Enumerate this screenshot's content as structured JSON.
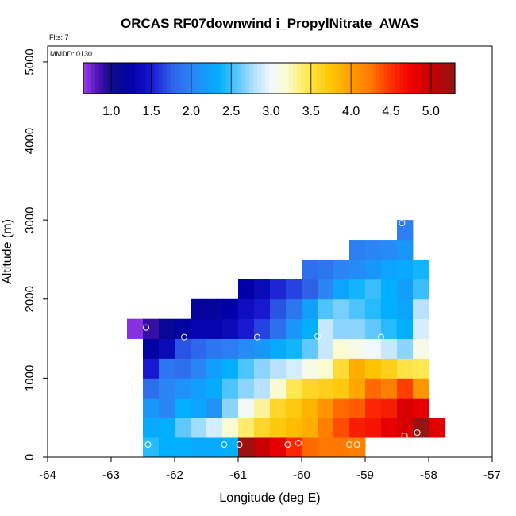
{
  "chart_data": {
    "type": "heatmap",
    "title": "ORCAS RF07downwind i_PropylNitrate_AWAS",
    "flights_label": "Flts: 7",
    "date_label": "MMDD: 0130",
    "xlabel": "Longitude (deg E)",
    "ylabel": "Altitude (m)",
    "xlim": [
      -64,
      -57
    ],
    "ylim": [
      0,
      5200
    ],
    "x_ticks": [
      -64,
      -63,
      -62,
      -61,
      -60,
      -59,
      -58,
      -57
    ],
    "y_ticks": [
      0,
      1000,
      2000,
      3000,
      4000,
      5000
    ],
    "cell_dx": 0.25,
    "cell_dy": 250,
    "colorbar": {
      "range": [
        0.65,
        5.3
      ],
      "tick_values": [
        1.0,
        1.5,
        2.0,
        2.5,
        3.0,
        3.5,
        4.0,
        4.5,
        5.0
      ],
      "tick_labels": [
        "1.0",
        "1.5",
        "2.0",
        "2.5",
        "3.0",
        "3.5",
        "4.0",
        "4.5",
        "5.0"
      ],
      "stops": [
        [
          0.65,
          "#9a3cf0"
        ],
        [
          0.85,
          "#4a10b0"
        ],
        [
          1.0,
          "#0c0c8c"
        ],
        [
          1.25,
          "#0000a8"
        ],
        [
          1.5,
          "#1818d0"
        ],
        [
          1.75,
          "#2e60e8"
        ],
        [
          2.0,
          "#2b85f5"
        ],
        [
          2.35,
          "#00b0ff"
        ],
        [
          2.6,
          "#60c8ff"
        ],
        [
          2.8,
          "#b8e2ff"
        ],
        [
          3.0,
          "#f2f8ff"
        ],
        [
          3.2,
          "#fbfbd0"
        ],
        [
          3.45,
          "#ffe850"
        ],
        [
          3.75,
          "#ffc400"
        ],
        [
          4.0,
          "#ff9e00"
        ],
        [
          4.25,
          "#ff7800"
        ],
        [
          4.5,
          "#ff3000"
        ],
        [
          4.75,
          "#f00000"
        ],
        [
          5.0,
          "#c80000"
        ],
        [
          5.3,
          "#941414"
        ]
      ]
    },
    "cells": [
      {
        "x": -62.5,
        "y": 0,
        "v": 2.45
      },
      {
        "x": -62.25,
        "y": 0,
        "v": 2.35
      },
      {
        "x": -62.0,
        "y": 0,
        "v": 2.35
      },
      {
        "x": -61.75,
        "y": 0,
        "v": 2.3
      },
      {
        "x": -61.5,
        "y": 0,
        "v": 2.3
      },
      {
        "x": -61.25,
        "y": 0,
        "v": 2.35
      },
      {
        "x": -61.0,
        "y": 0,
        "v": 5.25
      },
      {
        "x": -60.75,
        "y": 0,
        "v": 5.0
      },
      {
        "x": -60.5,
        "y": 0,
        "v": 4.8
      },
      {
        "x": -60.25,
        "y": 0,
        "v": 4.55
      },
      {
        "x": -60.0,
        "y": 0,
        "v": 4.3
      },
      {
        "x": -59.75,
        "y": 0,
        "v": 4.25
      },
      {
        "x": -59.5,
        "y": 0,
        "v": 4.25
      },
      {
        "x": -59.25,
        "y": 0,
        "v": 4.2
      },
      {
        "x": -62.5,
        "y": 250,
        "v": 2.3
      },
      {
        "x": -62.25,
        "y": 250,
        "v": 2.35
      },
      {
        "x": -62.0,
        "y": 250,
        "v": 2.6
      },
      {
        "x": -61.75,
        "y": 250,
        "v": 2.75
      },
      {
        "x": -61.5,
        "y": 250,
        "v": 2.9
      },
      {
        "x": -61.25,
        "y": 250,
        "v": 3.2
      },
      {
        "x": -61.0,
        "y": 250,
        "v": 3.4
      },
      {
        "x": -60.75,
        "y": 250,
        "v": 3.6
      },
      {
        "x": -60.5,
        "y": 250,
        "v": 3.7
      },
      {
        "x": -60.25,
        "y": 250,
        "v": 3.8
      },
      {
        "x": -60.0,
        "y": 250,
        "v": 3.9
      },
      {
        "x": -59.75,
        "y": 250,
        "v": 4.2
      },
      {
        "x": -59.5,
        "y": 250,
        "v": 4.4
      },
      {
        "x": -59.25,
        "y": 250,
        "v": 4.6
      },
      {
        "x": -59.0,
        "y": 250,
        "v": 4.65
      },
      {
        "x": -58.75,
        "y": 250,
        "v": 4.8
      },
      {
        "x": -58.5,
        "y": 250,
        "v": 4.9
      },
      {
        "x": -58.25,
        "y": 250,
        "v": 5.3
      },
      {
        "x": -58.0,
        "y": 250,
        "v": 4.85
      },
      {
        "x": -62.5,
        "y": 500,
        "v": 2.15
      },
      {
        "x": -62.25,
        "y": 500,
        "v": 2.0
      },
      {
        "x": -62.0,
        "y": 500,
        "v": 2.35
      },
      {
        "x": -61.75,
        "y": 500,
        "v": 2.25
      },
      {
        "x": -61.5,
        "y": 500,
        "v": 2.1
      },
      {
        "x": -61.25,
        "y": 500,
        "v": 2.7
      },
      {
        "x": -61.0,
        "y": 500,
        "v": 3.05
      },
      {
        "x": -60.75,
        "y": 500,
        "v": 3.3
      },
      {
        "x": -60.5,
        "y": 500,
        "v": 3.6
      },
      {
        "x": -60.25,
        "y": 500,
        "v": 3.7
      },
      {
        "x": -60.0,
        "y": 500,
        "v": 3.85
      },
      {
        "x": -59.75,
        "y": 500,
        "v": 4.05
      },
      {
        "x": -59.5,
        "y": 500,
        "v": 4.3
      },
      {
        "x": -59.25,
        "y": 500,
        "v": 4.35
      },
      {
        "x": -59.0,
        "y": 500,
        "v": 4.55
      },
      {
        "x": -58.75,
        "y": 500,
        "v": 4.6
      },
      {
        "x": -58.5,
        "y": 500,
        "v": 4.9
      },
      {
        "x": -58.25,
        "y": 500,
        "v": 4.8
      },
      {
        "x": -62.5,
        "y": 750,
        "v": 1.85
      },
      {
        "x": -62.25,
        "y": 750,
        "v": 2.0
      },
      {
        "x": -62.0,
        "y": 750,
        "v": 2.1
      },
      {
        "x": -61.75,
        "y": 750,
        "v": 2.2
      },
      {
        "x": -61.5,
        "y": 750,
        "v": 2.3
      },
      {
        "x": -61.25,
        "y": 750,
        "v": 2.55
      },
      {
        "x": -61.0,
        "y": 750,
        "v": 2.7
      },
      {
        "x": -60.75,
        "y": 750,
        "v": 2.8
      },
      {
        "x": -60.5,
        "y": 750,
        "v": 3.2
      },
      {
        "x": -60.25,
        "y": 750,
        "v": 3.45
      },
      {
        "x": -60.0,
        "y": 750,
        "v": 3.6
      },
      {
        "x": -59.75,
        "y": 750,
        "v": 3.65
      },
      {
        "x": -59.5,
        "y": 750,
        "v": 3.7
      },
      {
        "x": -59.25,
        "y": 750,
        "v": 3.95
      },
      {
        "x": -59.0,
        "y": 750,
        "v": 4.3
      },
      {
        "x": -58.75,
        "y": 750,
        "v": 4.2
      },
      {
        "x": -58.5,
        "y": 750,
        "v": 4.45
      },
      {
        "x": -58.25,
        "y": 750,
        "v": 4.05
      },
      {
        "x": -62.5,
        "y": 1000,
        "v": 1.5
      },
      {
        "x": -62.25,
        "y": 1000,
        "v": 1.9
      },
      {
        "x": -62.0,
        "y": 1000,
        "v": 1.85
      },
      {
        "x": -61.75,
        "y": 1000,
        "v": 2.0
      },
      {
        "x": -61.5,
        "y": 1000,
        "v": 2.2
      },
      {
        "x": -61.25,
        "y": 1000,
        "v": 2.35
      },
      {
        "x": -61.0,
        "y": 1000,
        "v": 2.55
      },
      {
        "x": -60.75,
        "y": 1000,
        "v": 2.7
      },
      {
        "x": -60.5,
        "y": 1000,
        "v": 2.8
      },
      {
        "x": -60.25,
        "y": 1000,
        "v": 2.9
      },
      {
        "x": -60.0,
        "y": 1000,
        "v": 3.1
      },
      {
        "x": -59.75,
        "y": 1000,
        "v": 3.2
      },
      {
        "x": -59.5,
        "y": 1000,
        "v": 3.55
      },
      {
        "x": -59.25,
        "y": 1000,
        "v": 3.9
      },
      {
        "x": -59.0,
        "y": 1000,
        "v": 3.75
      },
      {
        "x": -58.75,
        "y": 1000,
        "v": 3.65
      },
      {
        "x": -58.5,
        "y": 1000,
        "v": 3.5
      },
      {
        "x": -58.25,
        "y": 1000,
        "v": 3.45
      },
      {
        "x": -62.5,
        "y": 1250,
        "v": 1.2
      },
      {
        "x": -62.25,
        "y": 1250,
        "v": 1.35
      },
      {
        "x": -62.0,
        "y": 1250,
        "v": 1.7
      },
      {
        "x": -61.75,
        "y": 1250,
        "v": 1.8
      },
      {
        "x": -61.5,
        "y": 1250,
        "v": 1.9
      },
      {
        "x": -61.25,
        "y": 1250,
        "v": 1.95
      },
      {
        "x": -61.0,
        "y": 1250,
        "v": 2.05
      },
      {
        "x": -60.75,
        "y": 1250,
        "v": 2.15
      },
      {
        "x": -60.5,
        "y": 1250,
        "v": 2.3
      },
      {
        "x": -60.25,
        "y": 1250,
        "v": 2.4
      },
      {
        "x": -60.0,
        "y": 1250,
        "v": 2.6
      },
      {
        "x": -59.75,
        "y": 1250,
        "v": 2.85
      },
      {
        "x": -59.5,
        "y": 1250,
        "v": 3.2
      },
      {
        "x": -59.25,
        "y": 1250,
        "v": 3.1
      },
      {
        "x": -59.0,
        "y": 1250,
        "v": 3.0
      },
      {
        "x": -58.75,
        "y": 1250,
        "v": 2.85
      },
      {
        "x": -58.5,
        "y": 1250,
        "v": 2.7
      },
      {
        "x": -58.25,
        "y": 1250,
        "v": 3.1
      },
      {
        "x": -62.75,
        "y": 1500,
        "v": 0.7
      },
      {
        "x": -62.5,
        "y": 1500,
        "v": 0.9
      },
      {
        "x": -62.25,
        "y": 1500,
        "v": 1.1
      },
      {
        "x": -62.0,
        "y": 1500,
        "v": 1.2
      },
      {
        "x": -61.75,
        "y": 1500,
        "v": 1.3
      },
      {
        "x": -61.5,
        "y": 1500,
        "v": 1.3
      },
      {
        "x": -61.25,
        "y": 1500,
        "v": 1.35
      },
      {
        "x": -61.0,
        "y": 1500,
        "v": 1.5
      },
      {
        "x": -60.75,
        "y": 1500,
        "v": 1.65
      },
      {
        "x": -60.5,
        "y": 1500,
        "v": 1.85
      },
      {
        "x": -60.25,
        "y": 1500,
        "v": 2.15
      },
      {
        "x": -60.0,
        "y": 1500,
        "v": 2.35
      },
      {
        "x": -59.75,
        "y": 1500,
        "v": 2.85
      },
      {
        "x": -59.5,
        "y": 1500,
        "v": 2.7
      },
      {
        "x": -59.25,
        "y": 1500,
        "v": 2.7
      },
      {
        "x": -59.0,
        "y": 1500,
        "v": 2.6
      },
      {
        "x": -58.75,
        "y": 1500,
        "v": 2.45
      },
      {
        "x": -58.5,
        "y": 1500,
        "v": 2.35
      },
      {
        "x": -58.25,
        "y": 1500,
        "v": 2.9
      },
      {
        "x": -61.75,
        "y": 1750,
        "v": 1.15
      },
      {
        "x": -61.5,
        "y": 1750,
        "v": 1.15
      },
      {
        "x": -61.25,
        "y": 1750,
        "v": 1.25
      },
      {
        "x": -61.0,
        "y": 1750,
        "v": 1.4
      },
      {
        "x": -60.75,
        "y": 1750,
        "v": 1.5
      },
      {
        "x": -60.5,
        "y": 1750,
        "v": 1.7
      },
      {
        "x": -60.25,
        "y": 1750,
        "v": 1.9
      },
      {
        "x": -60.0,
        "y": 1750,
        "v": 2.2
      },
      {
        "x": -59.75,
        "y": 1750,
        "v": 2.55
      },
      {
        "x": -59.5,
        "y": 1750,
        "v": 2.65
      },
      {
        "x": -59.25,
        "y": 1750,
        "v": 2.55
      },
      {
        "x": -59.0,
        "y": 1750,
        "v": 2.45
      },
      {
        "x": -58.75,
        "y": 1750,
        "v": 2.35
      },
      {
        "x": -58.5,
        "y": 1750,
        "v": 2.25
      },
      {
        "x": -58.25,
        "y": 1750,
        "v": 2.8
      },
      {
        "x": -61.0,
        "y": 2000,
        "v": 1.25
      },
      {
        "x": -60.75,
        "y": 2000,
        "v": 1.35
      },
      {
        "x": -60.5,
        "y": 2000,
        "v": 1.55
      },
      {
        "x": -60.25,
        "y": 2000,
        "v": 1.65
      },
      {
        "x": -60.0,
        "y": 2000,
        "v": 1.75
      },
      {
        "x": -59.75,
        "y": 2000,
        "v": 2.0
      },
      {
        "x": -59.5,
        "y": 2000,
        "v": 2.25
      },
      {
        "x": -59.25,
        "y": 2000,
        "v": 2.4
      },
      {
        "x": -59.0,
        "y": 2000,
        "v": 2.5
      },
      {
        "x": -58.75,
        "y": 2000,
        "v": 2.35
      },
      {
        "x": -58.5,
        "y": 2000,
        "v": 2.2
      },
      {
        "x": -58.25,
        "y": 2000,
        "v": 2.5
      },
      {
        "x": -60.0,
        "y": 2250,
        "v": 1.85
      },
      {
        "x": -59.75,
        "y": 2250,
        "v": 1.9
      },
      {
        "x": -59.5,
        "y": 2250,
        "v": 2.0
      },
      {
        "x": -59.25,
        "y": 2250,
        "v": 2.05
      },
      {
        "x": -59.0,
        "y": 2250,
        "v": 2.15
      },
      {
        "x": -58.75,
        "y": 2250,
        "v": 2.25
      },
      {
        "x": -58.5,
        "y": 2250,
        "v": 2.3
      },
      {
        "x": -58.25,
        "y": 2250,
        "v": 2.4
      },
      {
        "x": -59.25,
        "y": 2500,
        "v": 1.95
      },
      {
        "x": -59.0,
        "y": 2500,
        "v": 2.0
      },
      {
        "x": -58.75,
        "y": 2500,
        "v": 2.05
      },
      {
        "x": -58.5,
        "y": 2500,
        "v": 2.15
      },
      {
        "x": -58.5,
        "y": 2750,
        "v": 1.95
      }
    ],
    "samples": [
      {
        "x": -62.45,
        "y": 1640
      },
      {
        "x": -61.85,
        "y": 1520
      },
      {
        "x": -60.7,
        "y": 1520
      },
      {
        "x": -59.75,
        "y": 1530
      },
      {
        "x": -58.75,
        "y": 1520
      },
      {
        "x": -58.42,
        "y": 2960
      },
      {
        "x": -62.42,
        "y": 160
      },
      {
        "x": -61.22,
        "y": 160
      },
      {
        "x": -60.98,
        "y": 160
      },
      {
        "x": -60.22,
        "y": 160
      },
      {
        "x": -60.05,
        "y": 180
      },
      {
        "x": -59.25,
        "y": 160
      },
      {
        "x": -59.13,
        "y": 160
      },
      {
        "x": -58.38,
        "y": 270
      },
      {
        "x": -58.18,
        "y": 310
      }
    ]
  }
}
